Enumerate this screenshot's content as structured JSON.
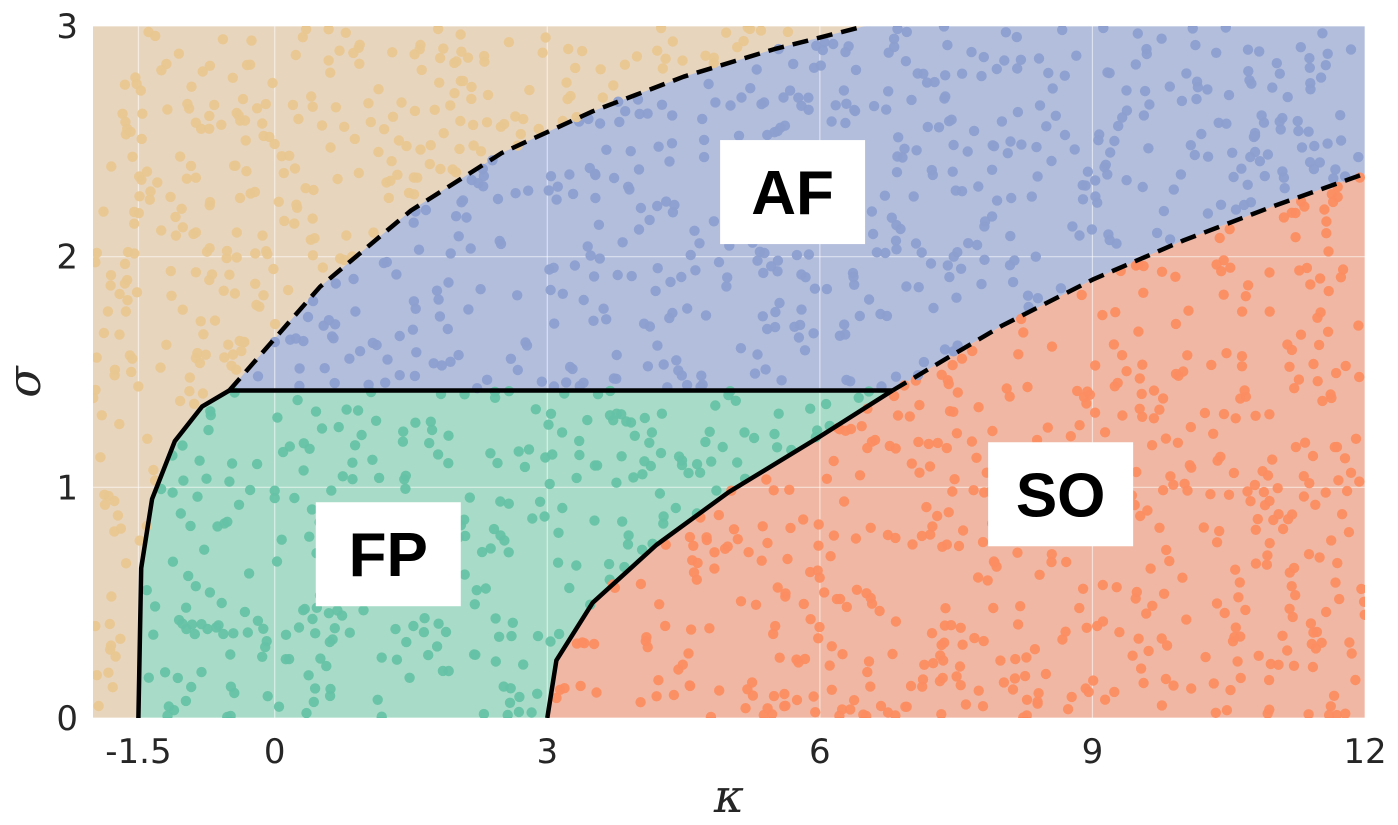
{
  "chart_data": {
    "type": "scatter",
    "title": "",
    "xlabel": "κ",
    "ylabel": "σ",
    "xlim": [
      -2,
      12
    ],
    "ylim": [
      0,
      3
    ],
    "grid": true,
    "x_ticks": [
      {
        "value": -1.5,
        "label": "-1.5"
      },
      {
        "value": 0,
        "label": "0"
      },
      {
        "value": 3,
        "label": "3"
      },
      {
        "value": 6,
        "label": "6"
      },
      {
        "value": 9,
        "label": "9"
      },
      {
        "value": 12,
        "label": "12"
      }
    ],
    "y_ticks": [
      {
        "value": 0,
        "label": "0"
      },
      {
        "value": 1,
        "label": "1"
      },
      {
        "value": 2,
        "label": "2"
      },
      {
        "value": 3,
        "label": "3"
      }
    ],
    "regions": [
      {
        "label": "",
        "color": "#e8d5bd",
        "point_color": "#e9c790"
      },
      {
        "label": "AF",
        "color": "#b3bedd",
        "point_color": "#8d9fcf",
        "label_pos": [
          5.7,
          2.28
        ]
      },
      {
        "label": "FP",
        "color": "#a8dcc8",
        "point_color": "#66c2a5",
        "label_pos": [
          1.25,
          0.71
        ]
      },
      {
        "label": "SO",
        "color": "#f0b8a4",
        "point_color": "#fc8d62",
        "label_pos": [
          8.65,
          0.97
        ]
      }
    ],
    "boundaries": [
      {
        "name": "upper-dashed",
        "style": "dashed",
        "x": [
          -0.5,
          0.5,
          1.5,
          2.5,
          3.5,
          4.5,
          5.5,
          6.5
        ],
        "y": [
          1.42,
          1.87,
          2.2,
          2.45,
          2.63,
          2.78,
          2.9,
          3.0
        ]
      },
      {
        "name": "lower-dashed",
        "style": "dashed",
        "x": [
          6.8,
          8.0,
          9.0,
          10.0,
          11.0,
          12.0
        ],
        "y": [
          1.42,
          1.7,
          1.9,
          2.07,
          2.22,
          2.36
        ]
      },
      {
        "name": "left-solid",
        "style": "solid",
        "x": [
          -1.5,
          -1.47,
          -1.35,
          -1.1,
          -0.8,
          -0.5
        ],
        "y": [
          0.0,
          0.65,
          0.95,
          1.2,
          1.35,
          1.42
        ]
      },
      {
        "name": "horizontal-solid",
        "style": "solid",
        "x": [
          -0.5,
          6.8
        ],
        "y": [
          1.42,
          1.42
        ]
      },
      {
        "name": "lower-solid",
        "style": "solid",
        "x": [
          3.0,
          3.1,
          3.5,
          4.2,
          5.0,
          6.0,
          6.8
        ],
        "y": [
          0.0,
          0.25,
          0.5,
          0.75,
          0.98,
          1.22,
          1.42
        ]
      }
    ]
  }
}
